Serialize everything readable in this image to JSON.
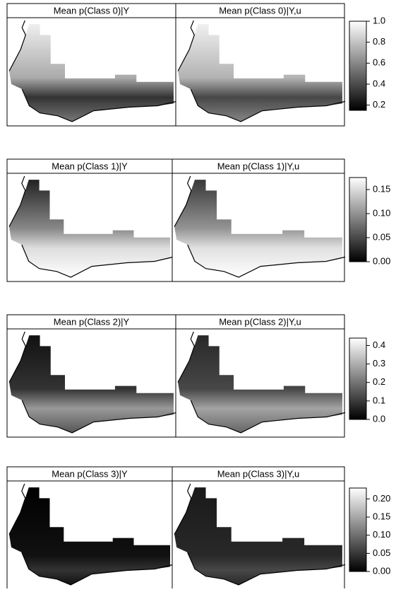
{
  "rows": [
    {
      "titles": [
        "Mean p(Class 0)|Y",
        "Mean p(Class 0)|Y,u"
      ],
      "colorbar": {
        "range": [
          0.15,
          1.0
        ],
        "ticks": [
          {
            "value": 1,
            "label": "1.0"
          },
          0.8,
          0.6,
          0.4,
          0.2
        ]
      }
    },
    {
      "titles": [
        "Mean p(Class 1)|Y",
        "Mean p(Class 1)|Y,u"
      ],
      "colorbar": {
        "range": [
          0,
          0.175
        ],
        "ticks": [
          0.15,
          {
            "value": 0.1,
            "label": "0.10"
          },
          0.05,
          {
            "value": 0,
            "label": "0.00"
          }
        ]
      }
    },
    {
      "titles": [
        "Mean p(Class 2)|Y",
        "Mean p(Class 2)|Y,u"
      ],
      "colorbar": {
        "range": [
          0,
          0.44
        ],
        "ticks": [
          0.4,
          0.3,
          0.2,
          0.1,
          {
            "value": 0,
            "label": "0.0"
          }
        ]
      }
    },
    {
      "titles": [
        "Mean p(Class 3)|Y",
        "Mean p(Class 3)|Y,u"
      ],
      "colorbar": {
        "range": [
          0,
          0.23
        ],
        "ticks": [
          {
            "value": 0.2,
            "label": "0.20"
          },
          0.15,
          {
            "value": 0.1,
            "label": "0.10"
          },
          0.05,
          {
            "value": 0,
            "label": "0.00"
          }
        ]
      }
    }
  ]
}
